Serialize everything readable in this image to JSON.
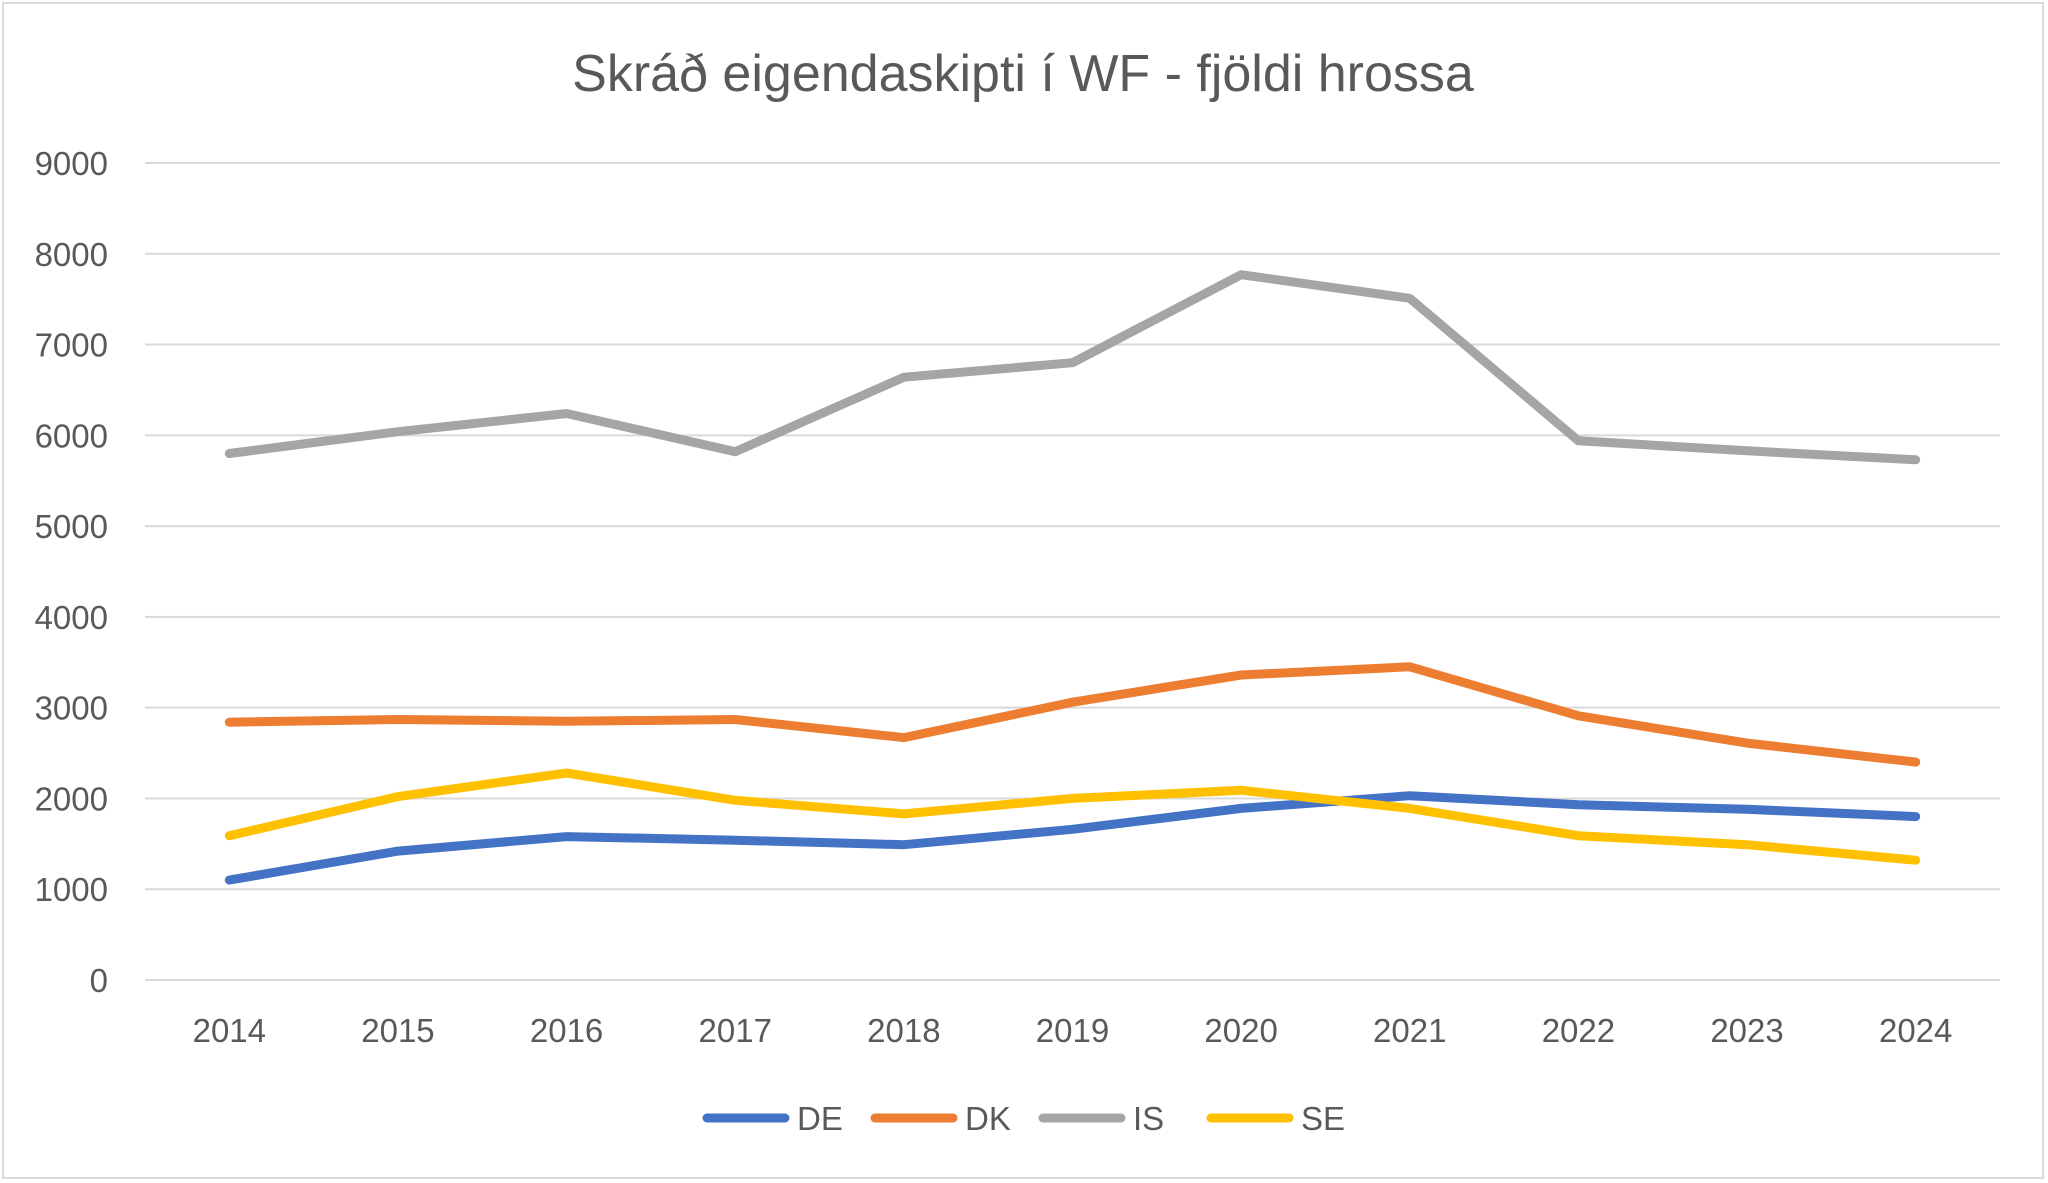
{
  "chart_data": {
    "type": "line",
    "title": "Skráð eigendaskipti í WF - fjöldi hrossa",
    "xlabel": "",
    "ylabel": "",
    "categories": [
      "2014",
      "2015",
      "2016",
      "2017",
      "2018",
      "2019",
      "2020",
      "2021",
      "2022",
      "2023",
      "2024"
    ],
    "ylim": [
      0,
      9000
    ],
    "yticks": [
      "0",
      "1000",
      "2000",
      "3000",
      "4000",
      "5000",
      "6000",
      "7000",
      "8000",
      "9000"
    ],
    "grid": true,
    "legend_position": "bottom",
    "series": [
      {
        "name": "DE",
        "color": "#4472C4",
        "values": [
          1100,
          1420,
          1580,
          1540,
          1490,
          1660,
          1890,
          2030,
          1930,
          1880,
          1800
        ]
      },
      {
        "name": "DK",
        "color": "#ED7D31",
        "values": [
          2840,
          2870,
          2850,
          2870,
          2670,
          3060,
          3360,
          3450,
          2910,
          2610,
          2400
        ]
      },
      {
        "name": "IS",
        "color": "#A5A5A5",
        "values": [
          5800,
          6040,
          6240,
          5820,
          6640,
          6800,
          7770,
          7510,
          5940,
          5830,
          5730
        ]
      },
      {
        "name": "SE",
        "color": "#FFC000",
        "values": [
          1590,
          2020,
          2280,
          1980,
          1830,
          2000,
          2090,
          1890,
          1590,
          1490,
          1320
        ]
      }
    ]
  }
}
